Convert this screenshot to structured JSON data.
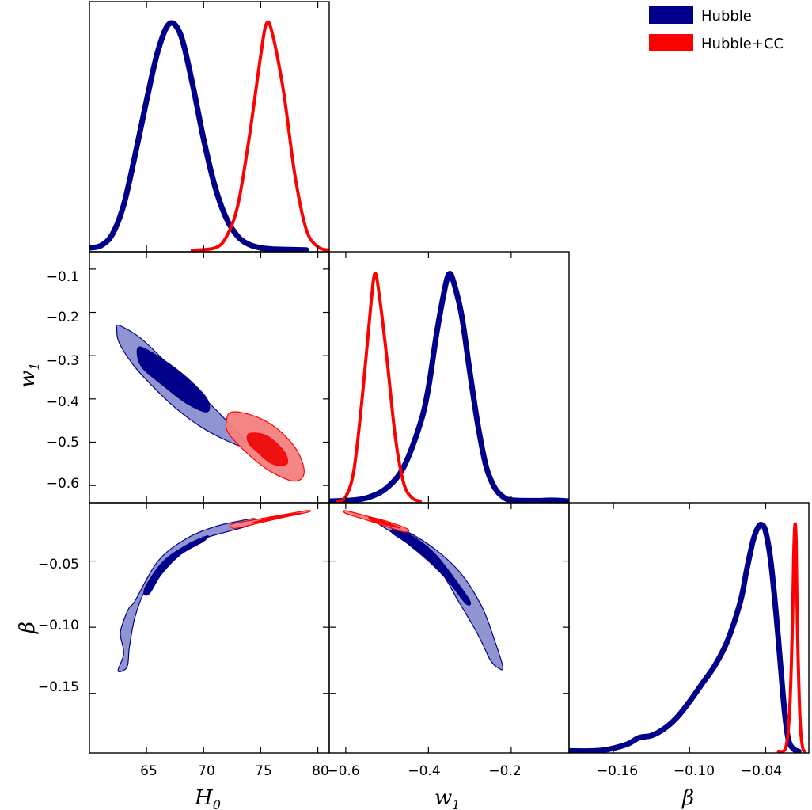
{
  "chart_data": {
    "type": "corner-plot",
    "legend": {
      "position": "top-right",
      "entries": [
        {
          "label": "Hubble",
          "color": "#00008b"
        },
        {
          "label": "Hubble+CC",
          "color": "#ff0000"
        }
      ]
    },
    "parameters": [
      {
        "key": "H0",
        "label": "H",
        "sub": "0",
        "range": [
          60,
          81
        ],
        "ticks": [
          65,
          70,
          75,
          80
        ]
      },
      {
        "key": "w1",
        "label": "w",
        "sub": "1",
        "range": [
          -0.64,
          -0.06
        ],
        "ticks": [
          -0.6,
          -0.5,
          -0.4,
          -0.3,
          -0.2,
          -0.1
        ],
        "xticks": [
          -0.6,
          -0.4,
          -0.2
        ]
      },
      {
        "key": "beta",
        "label": "β",
        "sub": "",
        "range": [
          -0.195,
          -0.006
        ],
        "ticks": [
          -0.15,
          -0.1,
          -0.05
        ],
        "xticks": [
          -0.16,
          -0.1,
          -0.04
        ]
      }
    ],
    "tick_text": {
      "H0": [
        "65",
        "70",
        "75",
        "80"
      ],
      "w1_y": [
        "−0.6",
        "−0.5",
        "−0.4",
        "−0.3",
        "−0.2",
        "−0.1"
      ],
      "w1_x": [
        "−0.6",
        "−0.4",
        "−0.2"
      ],
      "beta_y": [
        "−0.15",
        "−0.10",
        "−0.05"
      ],
      "beta_x": [
        "−0.16",
        "−0.10",
        "−0.04"
      ]
    },
    "marginals": {
      "H0": {
        "Hubble": [
          [
            60,
            0.01
          ],
          [
            61,
            0.02
          ],
          [
            62,
            0.07
          ],
          [
            63,
            0.2
          ],
          [
            64,
            0.42
          ],
          [
            65,
            0.66
          ],
          [
            66,
            0.88
          ],
          [
            67,
            1.0
          ],
          [
            68,
            0.95
          ],
          [
            69,
            0.74
          ],
          [
            70,
            0.49
          ],
          [
            71,
            0.28
          ],
          [
            72,
            0.14
          ],
          [
            73,
            0.06
          ],
          [
            74,
            0.025
          ],
          [
            75,
            0.01
          ],
          [
            76,
            0.005
          ],
          [
            78,
            0.002
          ],
          [
            79,
            0.001
          ]
        ],
        "Hubble+CC": [
          [
            69,
            0.0
          ],
          [
            71,
            0.01
          ],
          [
            72,
            0.06
          ],
          [
            73,
            0.2
          ],
          [
            74,
            0.5
          ],
          [
            75,
            0.86
          ],
          [
            75.5,
            1.0
          ],
          [
            76,
            0.96
          ],
          [
            77,
            0.7
          ],
          [
            78,
            0.33
          ],
          [
            79,
            0.09
          ],
          [
            80,
            0.015
          ],
          [
            81,
            0.0
          ]
        ]
      },
      "w1": {
        "Hubble": [
          [
            -0.64,
            0.0
          ],
          [
            -0.58,
            0.005
          ],
          [
            -0.54,
            0.02
          ],
          [
            -0.5,
            0.06
          ],
          [
            -0.46,
            0.15
          ],
          [
            -0.42,
            0.34
          ],
          [
            -0.4,
            0.5
          ],
          [
            -0.38,
            0.74
          ],
          [
            -0.36,
            0.94
          ],
          [
            -0.35,
            1.0
          ],
          [
            -0.34,
            0.97
          ],
          [
            -0.32,
            0.82
          ],
          [
            -0.3,
            0.57
          ],
          [
            -0.28,
            0.33
          ],
          [
            -0.26,
            0.15
          ],
          [
            -0.24,
            0.06
          ],
          [
            -0.22,
            0.02
          ],
          [
            -0.2,
            0.005
          ],
          [
            -0.14,
            0.002
          ],
          [
            -0.1,
            0.004
          ],
          [
            -0.06,
            0.0
          ]
        ],
        "Hubble+CC": [
          [
            -0.62,
            0.0
          ],
          [
            -0.6,
            0.02
          ],
          [
            -0.58,
            0.14
          ],
          [
            -0.56,
            0.46
          ],
          [
            -0.54,
            0.85
          ],
          [
            -0.53,
            1.0
          ],
          [
            -0.52,
            0.92
          ],
          [
            -0.5,
            0.62
          ],
          [
            -0.48,
            0.28
          ],
          [
            -0.46,
            0.08
          ],
          [
            -0.44,
            0.015
          ],
          [
            -0.42,
            0.0
          ]
        ]
      },
      "beta": {
        "Hubble": [
          [
            -0.195,
            0.002
          ],
          [
            -0.17,
            0.004
          ],
          [
            -0.15,
            0.03
          ],
          [
            -0.14,
            0.06
          ],
          [
            -0.13,
            0.07
          ],
          [
            -0.12,
            0.1
          ],
          [
            -0.11,
            0.15
          ],
          [
            -0.1,
            0.22
          ],
          [
            -0.09,
            0.3
          ],
          [
            -0.08,
            0.38
          ],
          [
            -0.07,
            0.49
          ],
          [
            -0.06,
            0.66
          ],
          [
            -0.055,
            0.8
          ],
          [
            -0.05,
            0.93
          ],
          [
            -0.046,
            0.99
          ],
          [
            -0.043,
            1.0
          ],
          [
            -0.04,
            0.97
          ],
          [
            -0.036,
            0.84
          ],
          [
            -0.032,
            0.62
          ],
          [
            -0.028,
            0.36
          ],
          [
            -0.025,
            0.17
          ],
          [
            -0.022,
            0.05
          ],
          [
            -0.018,
            0.01
          ],
          [
            -0.014,
            0.0
          ]
        ],
        "Hubble+CC": [
          [
            -0.03,
            0.0
          ],
          [
            -0.024,
            0.02
          ],
          [
            -0.021,
            0.2
          ],
          [
            -0.019,
            0.55
          ],
          [
            -0.018,
            0.85
          ],
          [
            -0.017,
            1.0
          ],
          [
            -0.016,
            0.93
          ],
          [
            -0.015,
            0.55
          ],
          [
            -0.013,
            0.15
          ],
          [
            -0.011,
            0.02
          ],
          [
            -0.009,
            0.0
          ]
        ]
      }
    },
    "contours": {
      "H0_w1": {
        "Hubble": {
          "outer": [
            [
              62.6,
              -0.23
            ],
            [
              64.5,
              -0.26
            ],
            [
              66.5,
              -0.31
            ],
            [
              68.5,
              -0.36
            ],
            [
              70.5,
              -0.41
            ],
            [
              72,
              -0.45
            ],
            [
              73.4,
              -0.49
            ],
            [
              73.4,
              -0.51
            ],
            [
              71.5,
              -0.49
            ],
            [
              69.5,
              -0.46
            ],
            [
              67.5,
              -0.42
            ],
            [
              65.5,
              -0.37
            ],
            [
              63.8,
              -0.32
            ],
            [
              62.6,
              -0.27
            ],
            [
              62.4,
              -0.24
            ]
          ],
          "inner": [
            [
              64.5,
              -0.28
            ],
            [
              66.5,
              -0.31
            ],
            [
              68.5,
              -0.35
            ],
            [
              70.3,
              -0.4
            ],
            [
              70.3,
              -0.43
            ],
            [
              68.5,
              -0.41
            ],
            [
              66.5,
              -0.37
            ],
            [
              64.7,
              -0.33
            ],
            [
              64.2,
              -0.3
            ]
          ]
        },
        "Hubble+CC": {
          "outer": [
            [
              72.5,
              -0.43
            ],
            [
              74.5,
              -0.44
            ],
            [
              76.5,
              -0.47
            ],
            [
              78.2,
              -0.52
            ],
            [
              78.8,
              -0.57
            ],
            [
              78,
              -0.59
            ],
            [
              76,
              -0.57
            ],
            [
              74,
              -0.53
            ],
            [
              72.2,
              -0.48
            ],
            [
              72,
              -0.45
            ]
          ],
          "inner": [
            [
              74,
              -0.48
            ],
            [
              75.5,
              -0.485
            ],
            [
              77,
              -0.52
            ],
            [
              77.3,
              -0.55
            ],
            [
              76,
              -0.55
            ],
            [
              74.6,
              -0.52
            ],
            [
              73.9,
              -0.5
            ]
          ]
        }
      },
      "H0_beta": {
        "Hubble": {
          "outer": [
            [
              64,
              -0.08
            ],
            [
              66,
              -0.05
            ],
            [
              68.5,
              -0.033
            ],
            [
              71,
              -0.024
            ],
            [
              73,
              -0.02
            ],
            [
              74.5,
              -0.018
            ],
            [
              74,
              -0.023
            ],
            [
              72,
              -0.028
            ],
            [
              70,
              -0.033
            ],
            [
              68,
              -0.041
            ],
            [
              66.5,
              -0.053
            ],
            [
              65,
              -0.07
            ],
            [
              64,
              -0.092
            ],
            [
              63.5,
              -0.115
            ],
            [
              63.3,
              -0.13
            ],
            [
              62.5,
              -0.133
            ],
            [
              63,
              -0.12
            ],
            [
              62.7,
              -0.105
            ],
            [
              63,
              -0.095
            ],
            [
              63.5,
              -0.085
            ]
          ],
          "inner": [
            [
              65,
              -0.068
            ],
            [
              66.5,
              -0.05
            ],
            [
              68.5,
              -0.038
            ],
            [
              70.3,
              -0.031
            ],
            [
              70,
              -0.035
            ],
            [
              68,
              -0.045
            ],
            [
              66.3,
              -0.06
            ],
            [
              65.3,
              -0.074
            ],
            [
              64.8,
              -0.075
            ]
          ]
        },
        "Hubble+CC": {
          "outer": [
            [
              72.5,
              -0.022
            ],
            [
              75,
              -0.018
            ],
            [
              77,
              -0.015
            ],
            [
              79,
              -0.012
            ],
            [
              79.2,
              -0.013
            ],
            [
              77,
              -0.017
            ],
            [
              75,
              -0.021
            ],
            [
              73,
              -0.025
            ],
            [
              72.5,
              -0.025
            ]
          ],
          "inner": [
            [
              74.5,
              -0.0205
            ],
            [
              76.5,
              -0.016
            ],
            [
              78.5,
              -0.014
            ],
            [
              76.5,
              -0.0175
            ],
            [
              74.5,
              -0.021
            ]
          ]
        }
      },
      "w1_beta": {
        "Hubble": {
          "outer": [
            [
              -0.53,
              -0.018
            ],
            [
              -0.45,
              -0.028
            ],
            [
              -0.38,
              -0.042
            ],
            [
              -0.32,
              -0.06
            ],
            [
              -0.27,
              -0.085
            ],
            [
              -0.24,
              -0.11
            ],
            [
              -0.22,
              -0.13
            ],
            [
              -0.23,
              -0.131
            ],
            [
              -0.25,
              -0.125
            ],
            [
              -0.27,
              -0.112
            ],
            [
              -0.29,
              -0.1
            ],
            [
              -0.33,
              -0.079
            ],
            [
              -0.37,
              -0.058
            ],
            [
              -0.42,
              -0.042
            ],
            [
              -0.48,
              -0.03
            ],
            [
              -0.52,
              -0.022
            ]
          ],
          "inner": [
            [
              -0.47,
              -0.026
            ],
            [
              -0.42,
              -0.035
            ],
            [
              -0.38,
              -0.046
            ],
            [
              -0.34,
              -0.062
            ],
            [
              -0.3,
              -0.08
            ],
            [
              -0.31,
              -0.082
            ],
            [
              -0.35,
              -0.066
            ],
            [
              -0.4,
              -0.05
            ],
            [
              -0.45,
              -0.037
            ],
            [
              -0.49,
              -0.028
            ]
          ]
        },
        "Hubble+CC": {
          "outer": [
            [
              -0.6,
              -0.012
            ],
            [
              -0.55,
              -0.016
            ],
            [
              -0.5,
              -0.02
            ],
            [
              -0.45,
              -0.026
            ],
            [
              -0.46,
              -0.028
            ],
            [
              -0.51,
              -0.023
            ],
            [
              -0.56,
              -0.018
            ],
            [
              -0.6,
              -0.014
            ]
          ],
          "inner": [
            [
              -0.54,
              -0.017
            ],
            [
              -0.5,
              -0.021
            ],
            [
              -0.47,
              -0.025
            ],
            [
              -0.51,
              -0.022
            ],
            [
              -0.54,
              -0.019
            ]
          ]
        }
      }
    }
  }
}
